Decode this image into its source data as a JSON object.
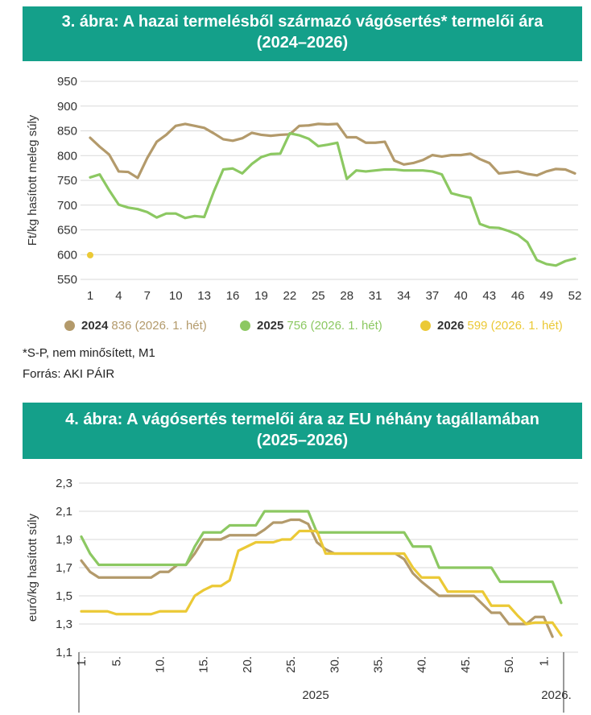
{
  "figure1": {
    "title_line1": "3. ábra: A hazai termelésből származó vágósertés* termelői ára",
    "title_line2": "(2024–2026)",
    "note": "*S-P, nem minősített, M1",
    "source": "Forrás: AKI PÁIR",
    "colors": {
      "s2024": "#b39a6b",
      "s2025": "#8cc862",
      "s2026": "#ebc936"
    },
    "legend": [
      {
        "year": "2024",
        "text": "836 (2026. 1. hét)",
        "color": "#b39a6b"
      },
      {
        "year": "2025",
        "text": "756 (2026. 1. hét)",
        "color": "#8cc862"
      },
      {
        "year": "2026",
        "text": "599 (2026. 1. hét)",
        "color": "#ebc936"
      }
    ],
    "chart_data": {
      "type": "line",
      "ylabel": "Ft/kg hasított meleg súly",
      "ylim": [
        550,
        950
      ],
      "yticks": [
        550,
        600,
        650,
        700,
        750,
        800,
        850,
        900,
        950
      ],
      "xticks": [
        1,
        4,
        7,
        10,
        13,
        16,
        19,
        22,
        25,
        28,
        31,
        34,
        37,
        40,
        43,
        46,
        49,
        52
      ],
      "grid": true,
      "series": [
        {
          "name": "2024",
          "x_start": 1,
          "values": [
            836,
            818,
            802,
            768,
            767,
            755,
            795,
            828,
            842,
            860,
            864,
            860,
            856,
            845,
            833,
            830,
            835,
            846,
            842,
            840,
            842,
            843,
            860,
            861,
            864,
            863,
            864,
            837,
            837,
            826,
            826,
            828,
            790,
            782,
            785,
            791,
            801,
            798,
            801,
            801,
            804,
            793,
            785,
            764,
            766,
            768,
            763,
            760,
            768,
            773,
            772,
            764
          ]
        },
        {
          "name": "2025",
          "x_start": 1,
          "values": [
            756,
            762,
            730,
            701,
            695,
            692,
            686,
            675,
            683,
            683,
            674,
            678,
            676,
            727,
            772,
            774,
            764,
            783,
            797,
            803,
            804,
            845,
            841,
            834,
            819,
            822,
            826,
            753,
            770,
            768,
            770,
            772,
            772,
            770,
            770,
            770,
            768,
            762,
            724,
            719,
            715,
            662,
            655,
            654,
            648,
            640,
            625,
            589,
            581,
            578,
            587,
            592
          ]
        },
        {
          "name": "2026",
          "x_start": 1,
          "values": [
            599
          ]
        }
      ]
    }
  },
  "figure2": {
    "title_line1": "4. ábra: A vágósertés termelői ára az EU néhány tagállamában",
    "title_line2": "(2025–2026)",
    "colors": {
      "a": "#b39a6b",
      "b": "#8cc862",
      "c": "#ebc936"
    },
    "chart_data": {
      "type": "line",
      "ylabel": "euró/kg hasított súly",
      "ylim": [
        1.1,
        2.3
      ],
      "ytick_labels": [
        "1,1",
        "1,3",
        "1,5",
        "1,7",
        "1,9",
        "2,1",
        "2,3"
      ],
      "xtick_labels": [
        "1.",
        "5.",
        "10.",
        "15.",
        "20.",
        "25.",
        "30.",
        "35.",
        "40.",
        "45.",
        "50.",
        "1."
      ],
      "year_labels": [
        "2025",
        "2026."
      ],
      "grid": true,
      "series": [
        {
          "name": "brown",
          "values": [
            1.75,
            1.67,
            1.63,
            1.63,
            1.63,
            1.63,
            1.63,
            1.63,
            1.63,
            1.67,
            1.67,
            1.72,
            1.72,
            1.8,
            1.9,
            1.9,
            1.9,
            1.93,
            1.93,
            1.93,
            1.93,
            1.97,
            2.02,
            2.02,
            2.04,
            2.04,
            2.01,
            1.88,
            1.83,
            1.8,
            1.8,
            1.8,
            1.8,
            1.8,
            1.8,
            1.8,
            1.8,
            1.76,
            1.66,
            1.6,
            1.55,
            1.5,
            1.5,
            1.5,
            1.5,
            1.5,
            1.44,
            1.38,
            1.38,
            1.3,
            1.3,
            1.3,
            1.35,
            1.35,
            1.21
          ]
        },
        {
          "name": "green",
          "values": [
            1.92,
            1.8,
            1.72,
            1.72,
            1.72,
            1.72,
            1.72,
            1.72,
            1.72,
            1.72,
            1.72,
            1.72,
            1.72,
            1.85,
            1.95,
            1.95,
            1.95,
            2.0,
            2.0,
            2.0,
            2.0,
            2.1,
            2.1,
            2.1,
            2.1,
            2.1,
            2.1,
            1.95,
            1.95,
            1.95,
            1.95,
            1.95,
            1.95,
            1.95,
            1.95,
            1.95,
            1.95,
            1.95,
            1.85,
            1.85,
            1.85,
            1.7,
            1.7,
            1.7,
            1.7,
            1.7,
            1.7,
            1.7,
            1.6,
            1.6,
            1.6,
            1.6,
            1.6,
            1.6,
            1.6,
            1.45
          ]
        },
        {
          "name": "yellow",
          "values": [
            1.39,
            1.39,
            1.39,
            1.39,
            1.37,
            1.37,
            1.37,
            1.37,
            1.37,
            1.39,
            1.39,
            1.39,
            1.39,
            1.5,
            1.54,
            1.57,
            1.57,
            1.61,
            1.82,
            1.85,
            1.88,
            1.88,
            1.88,
            1.9,
            1.9,
            1.96,
            1.96,
            1.96,
            1.8,
            1.8,
            1.8,
            1.8,
            1.8,
            1.8,
            1.8,
            1.8,
            1.8,
            1.8,
            1.7,
            1.63,
            1.63,
            1.63,
            1.53,
            1.53,
            1.53,
            1.53,
            1.53,
            1.43,
            1.43,
            1.43,
            1.36,
            1.3,
            1.31,
            1.31,
            1.31,
            1.22
          ]
        }
      ]
    }
  }
}
